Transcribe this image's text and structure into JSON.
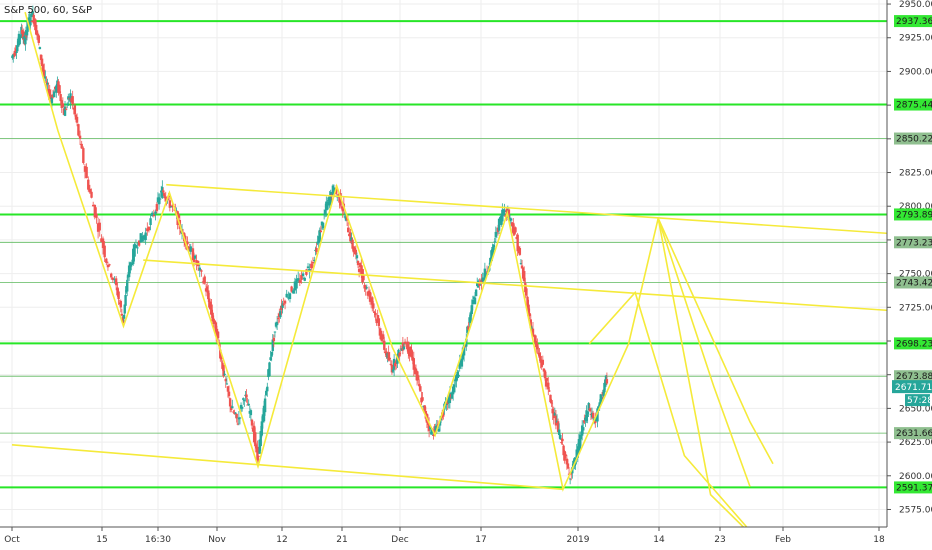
{
  "chart_data": {
    "type": "candlestick",
    "title": "S&P 500, 60, S&P",
    "x_tick_labels": [
      "Oct",
      "15",
      "16:30",
      "Nov",
      "12",
      "21",
      "Dec",
      "17",
      "2019",
      "14",
      "23",
      "Feb",
      "18"
    ],
    "y_axis": {
      "min": 2562,
      "max": 2953,
      "ticks": [
        2950.0,
        2925.0,
        2900.0,
        2875.0,
        2850.0,
        2825.0,
        2800.0,
        2775.0,
        2750.0,
        2725.0,
        2700.0,
        2675.0,
        2650.0,
        2625.0,
        2600.0,
        2575.0
      ],
      "tick_labels": [
        "2950.00",
        "2925.00",
        "2900.00",
        "2875.00",
        "2850.00",
        "2825.00",
        "2800.00",
        "2775.00",
        "2750.00",
        "2725.00",
        "2700.00",
        "2675.00",
        "2650.00",
        "2625.00",
        "2600.00",
        "2575.00"
      ]
    },
    "horizontal_levels": [
      {
        "value": 2937.36,
        "label": "2937.36",
        "style": "bright"
      },
      {
        "value": 2875.44,
        "label": "2875.44",
        "style": "bright"
      },
      {
        "value": 2850.22,
        "label": "2850.22",
        "style": "thin"
      },
      {
        "value": 2793.89,
        "label": "2793.89",
        "style": "bright"
      },
      {
        "value": 2773.23,
        "label": "2773.23",
        "style": "thin"
      },
      {
        "value": 2743.42,
        "label": "2743.42",
        "style": "thin"
      },
      {
        "value": 2698.23,
        "label": "2698.23",
        "style": "bright"
      },
      {
        "value": 2673.88,
        "label": "2673.88",
        "style": "thin"
      },
      {
        "value": 2631.66,
        "label": "2631.66",
        "style": "thin"
      },
      {
        "value": 2591.37,
        "label": "2591.37",
        "style": "bright"
      }
    ],
    "current_price": {
      "value": 2671.71,
      "label": "2671.71"
    },
    "countdown": {
      "label": "57:28"
    },
    "price_path": [
      [
        0,
        2910
      ],
      [
        0.15,
        2918
      ],
      [
        0.3,
        2930
      ],
      [
        0.4,
        2922
      ],
      [
        0.5,
        2936
      ],
      [
        0.65,
        2942
      ],
      [
        0.8,
        2925
      ],
      [
        1.0,
        2895
      ],
      [
        1.2,
        2880
      ],
      [
        1.4,
        2890
      ],
      [
        1.6,
        2870
      ],
      [
        1.8,
        2882
      ],
      [
        2.0,
        2860
      ],
      [
        2.3,
        2820
      ],
      [
        2.6,
        2790
      ],
      [
        2.9,
        2760
      ],
      [
        3.2,
        2740
      ],
      [
        3.4,
        2715
      ],
      [
        3.55,
        2750
      ],
      [
        3.8,
        2772
      ],
      [
        4.1,
        2780
      ],
      [
        4.4,
        2798
      ],
      [
        4.6,
        2812
      ],
      [
        4.75,
        2805
      ],
      [
        5.0,
        2795
      ],
      [
        5.2,
        2780
      ],
      [
        5.4,
        2770
      ],
      [
        5.6,
        2760
      ],
      [
        5.9,
        2742
      ],
      [
        6.1,
        2720
      ],
      [
        6.3,
        2700
      ],
      [
        6.5,
        2672
      ],
      [
        6.7,
        2650
      ],
      [
        6.9,
        2640
      ],
      [
        7.1,
        2660
      ],
      [
        7.3,
        2645
      ],
      [
        7.5,
        2612
      ],
      [
        7.7,
        2650
      ],
      [
        7.9,
        2690
      ],
      [
        8.1,
        2716
      ],
      [
        8.3,
        2730
      ],
      [
        8.6,
        2740
      ],
      [
        8.9,
        2748
      ],
      [
        9.2,
        2760
      ],
      [
        9.4,
        2780
      ],
      [
        9.6,
        2800
      ],
      [
        9.8,
        2812
      ],
      [
        10.0,
        2806
      ],
      [
        10.2,
        2790
      ],
      [
        10.4,
        2770
      ],
      [
        10.6,
        2755
      ],
      [
        10.8,
        2740
      ],
      [
        11.0,
        2728
      ],
      [
        11.2,
        2710
      ],
      [
        11.4,
        2692
      ],
      [
        11.6,
        2680
      ],
      [
        11.8,
        2690
      ],
      [
        12.0,
        2700
      ],
      [
        12.2,
        2688
      ],
      [
        12.4,
        2668
      ],
      [
        12.6,
        2646
      ],
      [
        12.8,
        2632
      ],
      [
        13.0,
        2636
      ],
      [
        13.2,
        2650
      ],
      [
        13.4,
        2660
      ],
      [
        13.6,
        2675
      ],
      [
        13.8,
        2695
      ],
      [
        14.0,
        2720
      ],
      [
        14.2,
        2742
      ],
      [
        14.4,
        2748
      ],
      [
        14.6,
        2760
      ],
      [
        14.8,
        2782
      ],
      [
        15.0,
        2798
      ],
      [
        15.2,
        2792
      ],
      [
        15.4,
        2775
      ],
      [
        15.6,
        2748
      ],
      [
        15.8,
        2716
      ],
      [
        16.0,
        2695
      ],
      [
        16.2,
        2680
      ],
      [
        16.4,
        2660
      ],
      [
        16.6,
        2640
      ],
      [
        16.8,
        2622
      ],
      [
        17.0,
        2600
      ],
      [
        17.2,
        2612
      ],
      [
        17.4,
        2635
      ],
      [
        17.6,
        2650
      ],
      [
        17.8,
        2640
      ],
      [
        18.0,
        2660
      ],
      [
        18.15,
        2672
      ]
    ],
    "trendlines": [
      {
        "points": [
          [
            4.7,
            2816
          ],
          [
            32.1,
            2771
          ]
        ]
      },
      {
        "points": [
          [
            4.0,
            2760
          ],
          [
            30.2,
            2717
          ]
        ]
      },
      {
        "points": [
          [
            0.0,
            2623
          ],
          [
            16.8,
            2590
          ]
        ]
      },
      {
        "points": [
          [
            0.4,
            2944
          ],
          [
            1.4,
            2856
          ],
          [
            3.4,
            2711
          ],
          [
            4.8,
            2810
          ],
          [
            7.5,
            2607
          ],
          [
            9.9,
            2815
          ],
          [
            11.6,
            2695
          ],
          [
            12.9,
            2630
          ],
          [
            15.1,
            2795
          ],
          [
            16.8,
            2590
          ],
          [
            18.8,
            2698
          ],
          [
            19.7,
            2791
          ],
          [
            21.3,
            2586
          ],
          [
            22.3,
            2562
          ]
        ]
      },
      {
        "points": [
          [
            19.7,
            2791
          ],
          [
            21.4,
            2666
          ],
          [
            22.5,
            2592
          ]
        ]
      },
      {
        "points": [
          [
            19.7,
            2791
          ],
          [
            22.5,
            2640
          ],
          [
            23.2,
            2609
          ]
        ]
      },
      {
        "points": [
          [
            17.6,
            2698
          ],
          [
            19.0,
            2736
          ],
          [
            20.5,
            2615
          ],
          [
            22.4,
            2562
          ]
        ]
      }
    ]
  }
}
